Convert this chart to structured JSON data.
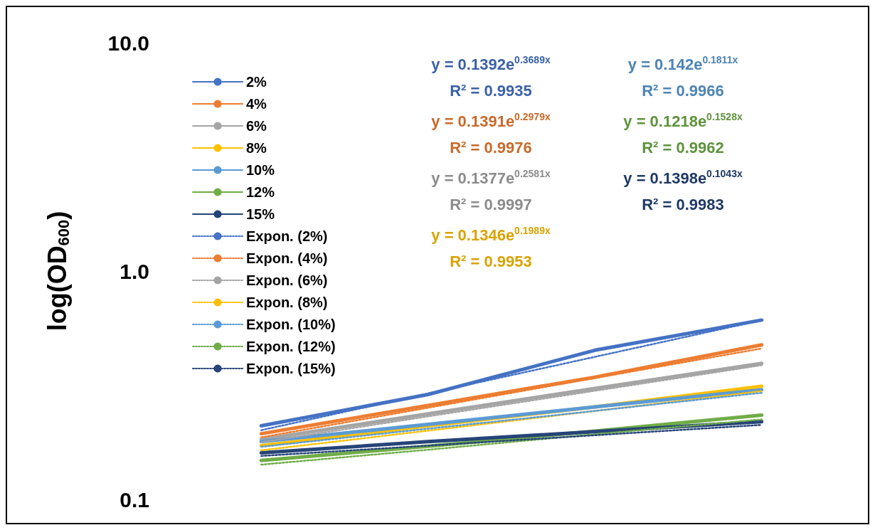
{
  "chart_data": {
    "type": "line",
    "ylabel": "log(OD$_{600}$)",
    "categories": [
      null,
      null,
      null,
      null
    ],
    "log": "y",
    "ylim": [
      0.1,
      10
    ],
    "yticks": [
      {
        "value": 0.1,
        "label": "0.1"
      },
      {
        "value": 1,
        "label": "1.0"
      },
      {
        "value": 10,
        "label": "10.0"
      }
    ],
    "grid": false,
    "legend": "top left",
    "marker": "none",
    "line_style": "solid",
    "series": [
      {
        "name": "2%",
        "color": "#4472c4",
        "values": [
          0.21,
          0.288,
          0.45,
          0.61
        ]
      },
      {
        "name": "4%",
        "color": "#ed7d31",
        "values": [
          0.194,
          0.258,
          0.343,
          0.475
        ]
      },
      {
        "name": "6%",
        "color": "#a5a5a5",
        "values": [
          0.183,
          0.237,
          0.306,
          0.394
        ]
      },
      {
        "name": "8%",
        "color": "#ffc000",
        "values": [
          0.172,
          0.21,
          0.254,
          0.313
        ]
      },
      {
        "name": "10%",
        "color": "#5b9bd5",
        "values": [
          0.179,
          0.213,
          0.254,
          0.302
        ]
      },
      {
        "name": "12%",
        "color": "#70ad47",
        "values": [
          0.148,
          0.171,
          0.199,
          0.234
        ]
      },
      {
        "name": "15%",
        "color": "#264478",
        "values": [
          0.16,
          0.179,
          0.198,
          0.219
        ]
      },
      {
        "name": "Expon. (2%)",
        "type": "line",
        "line_style": "dotted",
        "color": "#4472c4",
        "values": [
          0.201,
          0.291,
          0.421,
          0.609
        ]
      },
      {
        "name": "Expon. (4%)",
        "type": "line",
        "line_style": "dotted",
        "color": "#ed7d31",
        "values": [
          0.187,
          0.252,
          0.34,
          0.458
        ]
      },
      {
        "name": "Expon. (6%)",
        "type": "line",
        "line_style": "dotted",
        "color": "#a5a5a5",
        "values": [
          0.178,
          0.231,
          0.299,
          0.387
        ]
      },
      {
        "name": "Expon. (8%)",
        "type": "line",
        "line_style": "dotted",
        "color": "#ffc000",
        "values": [
          0.164,
          0.2,
          0.244,
          0.298
        ]
      },
      {
        "name": "Expon. (10%)",
        "type": "line",
        "line_style": "dotted",
        "color": "#5b9bd5",
        "values": [
          0.17,
          0.204,
          0.244,
          0.293
        ]
      },
      {
        "name": "Expon. (12%)",
        "type": "line",
        "line_style": "dotted",
        "color": "#70ad47",
        "values": [
          0.142,
          0.165,
          0.193,
          0.224
        ]
      },
      {
        "name": "Expon. (15%)",
        "type": "line",
        "line_style": "dotted",
        "color": "#264478",
        "values": [
          0.155,
          0.172,
          0.191,
          0.212
        ]
      }
    ],
    "annotations": [
      "y = 0.1392e$^{0.3689x}$",
      "R² = 0.9935",
      "y = 0.1391e$^{0.2979x}$",
      "R² = 0.9976",
      "y = 0.1377e$^{0.2581x}$",
      "R² = 0.9997",
      "y = 0.1346e$^{0.1989x}$",
      "R² = 0.9953",
      "y = 0.142e$^{0.1811x}$",
      "R² = 0.9966",
      "y = 0.1218e$^{0.1528x}$",
      "R² = 0.9962",
      "y = 0.1398e$^{0.1043x}$",
      "R² = 0.9983"
    ]
  }
}
